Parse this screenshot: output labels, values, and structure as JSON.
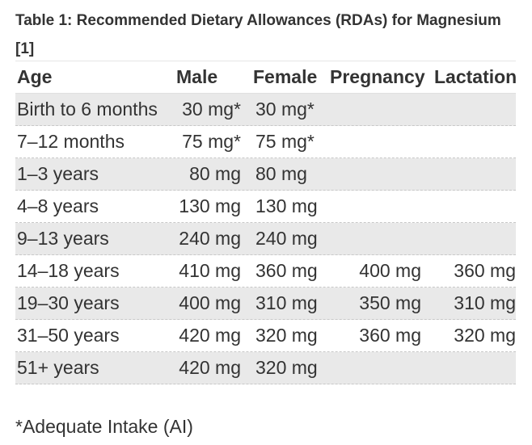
{
  "caption": "Table 1: Recommended Dietary Allowances (RDAs) for Magnesium [1]",
  "table": {
    "headers": [
      "Age",
      "Male",
      "Female",
      "Pregnancy",
      "Lactation"
    ],
    "rows": [
      [
        "Birth to 6 months",
        "30 mg*",
        "30 mg*",
        "",
        ""
      ],
      [
        "7–12 months",
        "75 mg*",
        "75 mg*",
        "",
        ""
      ],
      [
        "1–3 years",
        "80 mg",
        "80 mg",
        "",
        ""
      ],
      [
        "4–8 years",
        "130 mg",
        "130 mg",
        "",
        ""
      ],
      [
        "9–13 years",
        "240 mg",
        "240 mg",
        "",
        ""
      ],
      [
        "14–18 years",
        "410 mg",
        "360 mg",
        "400 mg",
        "360 mg"
      ],
      [
        "19–30 years",
        "400 mg",
        "310 mg",
        "350 mg",
        "310 mg"
      ],
      [
        "31–50 years",
        "420 mg",
        "320 mg",
        "360 mg",
        "320 mg"
      ],
      [
        "51+ years",
        "420 mg",
        "320 mg",
        "",
        ""
      ]
    ]
  },
  "footnote": "*Adequate Intake (AI)"
}
